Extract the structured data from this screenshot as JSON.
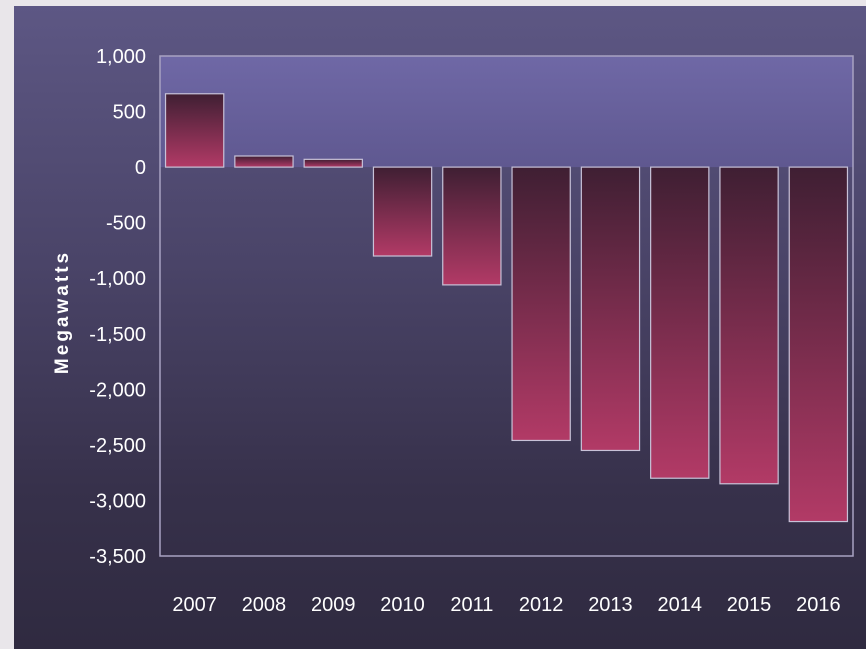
{
  "chart_data": {
    "type": "bar",
    "ylabel": "Megawatts",
    "xlabel": "",
    "title": "",
    "categories": [
      "2007",
      "2008",
      "2009",
      "2010",
      "2011",
      "2012",
      "2013",
      "2014",
      "2015",
      "2016"
    ],
    "values": [
      660,
      100,
      70,
      -800,
      -1060,
      -2460,
      -2550,
      -2800,
      -2850,
      -3190
    ],
    "ylim": [
      -3500,
      1000
    ],
    "yticks": [
      1000,
      500,
      0,
      -500,
      -1000,
      -1500,
      -2000,
      -2500,
      -3000,
      -3500
    ],
    "ytick_labels": [
      "1,000",
      "500",
      "0",
      "-500",
      "-1,000",
      "-1,500",
      "-2,000",
      "-2,500",
      "-3,000",
      "-3,500"
    ],
    "grid": false,
    "colors": {
      "bar_top": "#3f1f33",
      "bar_bottom": "#b23a66",
      "bar_edge": "#c8c2d8",
      "plot_band": "#6b64a0",
      "text": "#ffffff"
    }
  }
}
